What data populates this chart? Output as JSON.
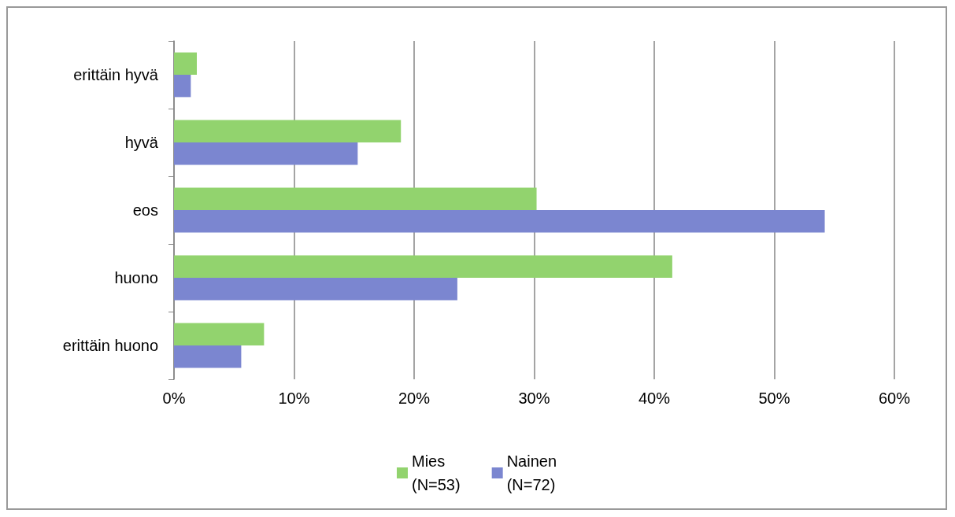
{
  "chart_data": {
    "type": "bar",
    "orientation": "horizontal",
    "categories": [
      "erittäin hyvä",
      "hyvä",
      "eos",
      "huono",
      "erittäin huono"
    ],
    "series": [
      {
        "name": "Mies\n(N=53)",
        "color": "#92d36e",
        "values": [
          1.9,
          18.9,
          30.2,
          41.5,
          7.5
        ]
      },
      {
        "name": "Nainen\n(N=72)",
        "color": "#7b86d0",
        "values": [
          1.4,
          15.3,
          54.2,
          23.6,
          5.6
        ]
      }
    ],
    "xlim": [
      0,
      60
    ],
    "xticks": [
      {
        "value": 0,
        "label": "0%"
      },
      {
        "value": 10,
        "label": "10%"
      },
      {
        "value": 20,
        "label": "20%"
      },
      {
        "value": 30,
        "label": "30%"
      },
      {
        "value": 40,
        "label": "40%"
      },
      {
        "value": 50,
        "label": "50%"
      },
      {
        "value": 60,
        "label": "60%"
      }
    ],
    "grid": "x",
    "legend": "bottom"
  }
}
